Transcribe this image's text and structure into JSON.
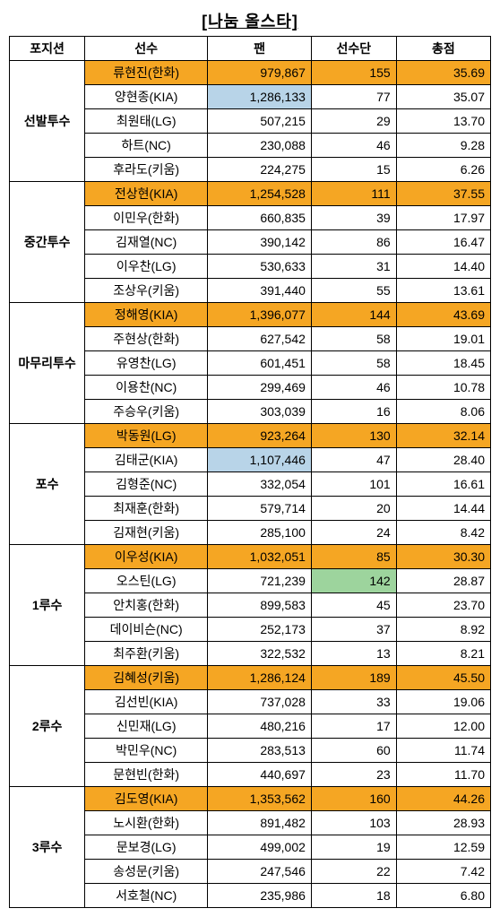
{
  "title": "[나눔 올스타]",
  "headers": [
    "포지션",
    "선수",
    "팬",
    "선수단",
    "총점"
  ],
  "colors": {
    "highlight_orange": "#f5a623",
    "highlight_blue": "#b8d4e8",
    "highlight_green": "#9dd49d",
    "border": "#000000",
    "background": "#ffffff"
  },
  "groups": [
    {
      "position": "선발투수",
      "rows": [
        {
          "player": "류현진(한화)",
          "fan": "979,867",
          "team": "155",
          "total": "35.69",
          "hl": {
            "row": "orange"
          }
        },
        {
          "player": "양현종(KIA)",
          "fan": "1,286,133",
          "team": "77",
          "total": "35.07",
          "hl": {
            "fan": "blue"
          }
        },
        {
          "player": "최원태(LG)",
          "fan": "507,215",
          "team": "29",
          "total": "13.70"
        },
        {
          "player": "하트(NC)",
          "fan": "230,088",
          "team": "46",
          "total": "9.28"
        },
        {
          "player": "후라도(키움)",
          "fan": "224,275",
          "team": "15",
          "total": "6.26"
        }
      ]
    },
    {
      "position": "중간투수",
      "rows": [
        {
          "player": "전상현(KIA)",
          "fan": "1,254,528",
          "team": "111",
          "total": "37.55",
          "hl": {
            "row": "orange"
          }
        },
        {
          "player": "이민우(한화)",
          "fan": "660,835",
          "team": "39",
          "total": "17.97"
        },
        {
          "player": "김재열(NC)",
          "fan": "390,142",
          "team": "86",
          "total": "16.47"
        },
        {
          "player": "이우찬(LG)",
          "fan": "530,633",
          "team": "31",
          "total": "14.40"
        },
        {
          "player": "조상우(키움)",
          "fan": "391,440",
          "team": "55",
          "total": "13.61"
        }
      ]
    },
    {
      "position": "마무리투수",
      "rows": [
        {
          "player": "정해영(KIA)",
          "fan": "1,396,077",
          "team": "144",
          "total": "43.69",
          "hl": {
            "row": "orange"
          }
        },
        {
          "player": "주현상(한화)",
          "fan": "627,542",
          "team": "58",
          "total": "19.01"
        },
        {
          "player": "유영찬(LG)",
          "fan": "601,451",
          "team": "58",
          "total": "18.45"
        },
        {
          "player": "이용찬(NC)",
          "fan": "299,469",
          "team": "46",
          "total": "10.78"
        },
        {
          "player": "주승우(키움)",
          "fan": "303,039",
          "team": "16",
          "total": "8.06"
        }
      ]
    },
    {
      "position": "포수",
      "rows": [
        {
          "player": "박동원(LG)",
          "fan": "923,264",
          "team": "130",
          "total": "32.14",
          "hl": {
            "row": "orange"
          }
        },
        {
          "player": "김태군(KIA)",
          "fan": "1,107,446",
          "team": "47",
          "total": "28.40",
          "hl": {
            "fan": "blue"
          }
        },
        {
          "player": "김형준(NC)",
          "fan": "332,054",
          "team": "101",
          "total": "16.61"
        },
        {
          "player": "최재훈(한화)",
          "fan": "579,714",
          "team": "20",
          "total": "14.44"
        },
        {
          "player": "김재현(키움)",
          "fan": "285,100",
          "team": "24",
          "total": "8.42"
        }
      ]
    },
    {
      "position": "1루수",
      "rows": [
        {
          "player": "이우성(KIA)",
          "fan": "1,032,051",
          "team": "85",
          "total": "30.30",
          "hl": {
            "row": "orange"
          }
        },
        {
          "player": "오스틴(LG)",
          "fan": "721,239",
          "team": "142",
          "total": "28.87",
          "hl": {
            "team": "green"
          }
        },
        {
          "player": "안치홍(한화)",
          "fan": "899,583",
          "team": "45",
          "total": "23.70"
        },
        {
          "player": "데이비슨(NC)",
          "fan": "252,173",
          "team": "37",
          "total": "8.92"
        },
        {
          "player": "최주환(키움)",
          "fan": "322,532",
          "team": "13",
          "total": "8.21"
        }
      ]
    },
    {
      "position": "2루수",
      "rows": [
        {
          "player": "김혜성(키움)",
          "fan": "1,286,124",
          "team": "189",
          "total": "45.50",
          "hl": {
            "row": "orange"
          }
        },
        {
          "player": "김선빈(KIA)",
          "fan": "737,028",
          "team": "33",
          "total": "19.06"
        },
        {
          "player": "신민재(LG)",
          "fan": "480,216",
          "team": "17",
          "total": "12.00"
        },
        {
          "player": "박민우(NC)",
          "fan": "283,513",
          "team": "60",
          "total": "11.74"
        },
        {
          "player": "문현빈(한화)",
          "fan": "440,697",
          "team": "23",
          "total": "11.70"
        }
      ]
    },
    {
      "position": "3루수",
      "rows": [
        {
          "player": "김도영(KIA)",
          "fan": "1,353,562",
          "team": "160",
          "total": "44.26",
          "hl": {
            "row": "orange"
          }
        },
        {
          "player": "노시환(한화)",
          "fan": "891,482",
          "team": "103",
          "total": "28.93"
        },
        {
          "player": "문보경(LG)",
          "fan": "499,002",
          "team": "19",
          "total": "12.59"
        },
        {
          "player": "송성문(키움)",
          "fan": "247,546",
          "team": "22",
          "total": "7.42"
        },
        {
          "player": "서호철(NC)",
          "fan": "235,986",
          "team": "18",
          "total": "6.80"
        }
      ]
    }
  ]
}
